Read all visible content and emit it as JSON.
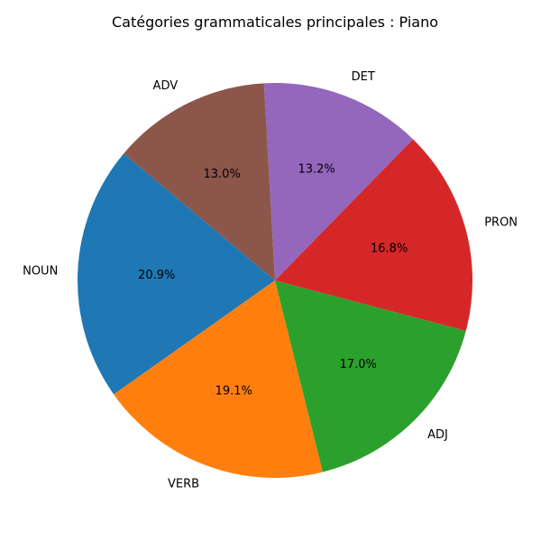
{
  "chart_data": {
    "type": "pie",
    "title": "Catégories grammaticales principales : Piano",
    "labels": [
      "NOUN",
      "VERB",
      "ADJ",
      "PRON",
      "DET",
      "ADV"
    ],
    "values": [
      20.9,
      19.1,
      17.0,
      16.8,
      13.2,
      13.0
    ],
    "value_labels": [
      "20.9%",
      "19.1%",
      "17.0%",
      "16.8%",
      "13.2%",
      "13.0%"
    ],
    "colors": [
      "#1f77b4",
      "#ff7f0e",
      "#2ca02c",
      "#d62728",
      "#9467bd",
      "#8c564b"
    ],
    "start_angle_deg": 140,
    "direction": "counterclockwise"
  }
}
